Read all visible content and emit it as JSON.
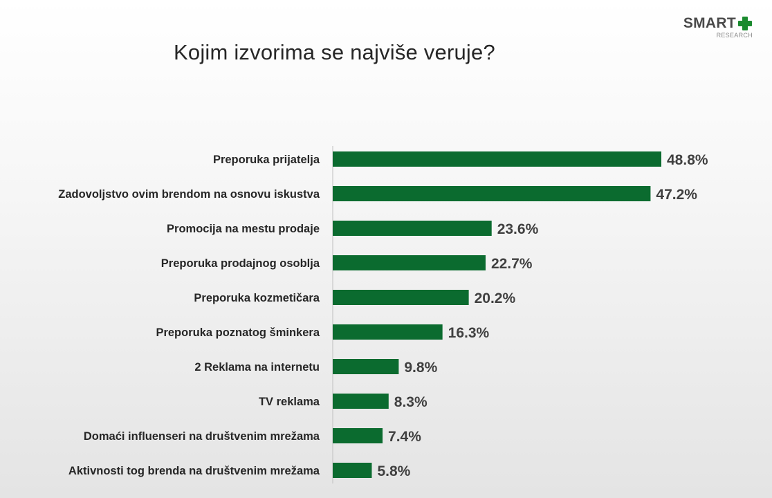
{
  "logo": {
    "word": "SMART",
    "sub": "RESEARCH",
    "accent_color": "#1a8a2e"
  },
  "chart_data": {
    "type": "bar",
    "orientation": "horizontal",
    "title": "Kojim izvorima se najviše veruje?",
    "bar_color": "#0b6b2f",
    "categories": [
      "Preporuka prijatelja",
      "Zadovoljstvo ovim brendom na osnovu iskustva",
      "Promocija na mestu prodaje",
      "Preporuka prodajnog osoblja",
      "Preporuka kozmetičara",
      "Preporuka poznatog šminkera",
      "2 Reklama na internetu",
      "TV reklama",
      "Domaći influenseri na društvenim mrežama",
      "Aktivnosti tog brenda  na društvenim mrežama"
    ],
    "values": [
      48.8,
      47.2,
      23.6,
      22.7,
      20.2,
      16.3,
      9.8,
      8.3,
      7.4,
      5.8
    ],
    "value_labels": [
      "48.8%",
      "47.2%",
      "23.6%",
      "22.7%",
      "20.2%",
      "16.3%",
      "9.8%",
      "8.3%",
      "7.4%",
      "5.8%"
    ],
    "grid": false,
    "legend": "none"
  }
}
